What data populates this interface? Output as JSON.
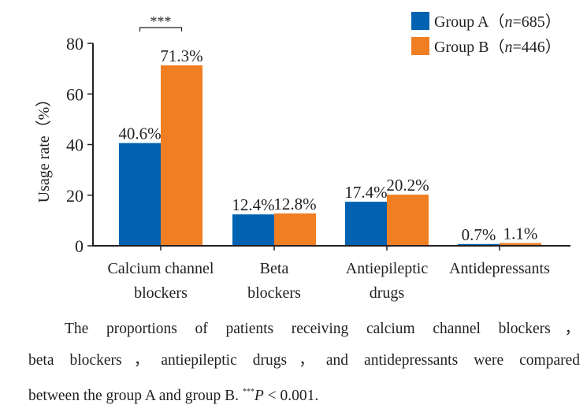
{
  "chart_data": {
    "type": "bar",
    "title": "",
    "xlabel": "",
    "ylabel": "Usage rate（%）",
    "ylim": [
      0,
      80
    ],
    "yticks": [
      0,
      20,
      40,
      60,
      80
    ],
    "grid": false,
    "legend_position": "top-right",
    "categories": [
      [
        "Calcium channel",
        "blockers"
      ],
      [
        "Beta",
        "blockers"
      ],
      [
        "Antiepileptic",
        "drugs"
      ],
      [
        "Antidepressants"
      ]
    ],
    "series": [
      {
        "name": "Group A",
        "n": "685",
        "color": "#0062b1",
        "values": [
          40.6,
          12.4,
          17.4,
          0.7
        ],
        "labels": [
          "40.6%",
          "12.4%",
          "17.4%",
          "0.7%"
        ]
      },
      {
        "name": "Group B",
        "n": "446",
        "color": "#f07f24",
        "values": [
          71.3,
          12.8,
          20.2,
          1.1
        ],
        "labels": [
          "71.3%",
          "12.8%",
          "20.2%",
          "1.1%"
        ]
      }
    ],
    "annotations": [
      {
        "category_index": 0,
        "text": "***",
        "type": "significance-bracket"
      }
    ]
  },
  "caption": {
    "line1": "The proportions of patients receiving calcium channel blockers，",
    "line2": "beta blockers，antiepileptic drugs，and antidepressants were compared",
    "line3_prefix": "between the group A and group B. ",
    "sig_marker": "***",
    "p_symbol": "P",
    "p_text": " < 0.001."
  }
}
